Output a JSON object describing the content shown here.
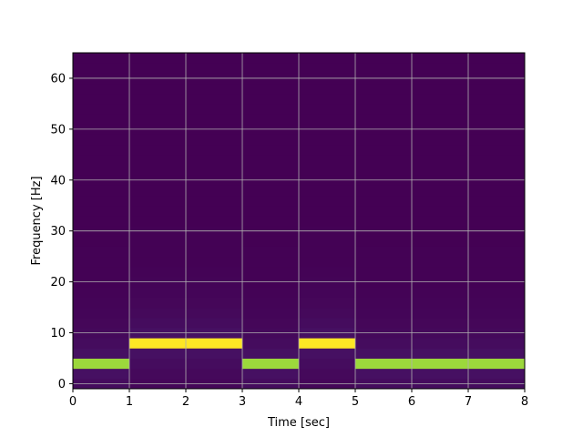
{
  "chart_data": {
    "type": "heatmap",
    "title": "",
    "xlabel": "Time [sec]",
    "ylabel": "Frequency [Hz]",
    "xlim": [
      0,
      8
    ],
    "ylim": [
      -1,
      65
    ],
    "grid": true,
    "xticks": [
      0,
      1,
      2,
      3,
      4,
      5,
      6,
      7,
      8
    ],
    "yticks": [
      0,
      10,
      20,
      30,
      40,
      50,
      60
    ],
    "frequency_bin_width": 2,
    "background_color": "#440154",
    "colormap_stops": [
      "#440154",
      "#482475",
      "#414487",
      "#355f8d",
      "#2a788e",
      "#21918c",
      "#22a884",
      "#44bf70",
      "#7ad151",
      "#bddf26",
      "#fde725"
    ],
    "segments": [
      {
        "t_start": 0,
        "t_end": 1,
        "peak_frequency": 4,
        "intensity": 0.85
      },
      {
        "t_start": 1,
        "t_end": 3,
        "peak_frequency": 8,
        "intensity": 1.0
      },
      {
        "t_start": 3,
        "t_end": 4,
        "peak_frequency": 4,
        "intensity": 0.85
      },
      {
        "t_start": 4,
        "t_end": 5,
        "peak_frequency": 8,
        "intensity": 1.0
      },
      {
        "t_start": 5,
        "t_end": 8,
        "peak_frequency": 4,
        "intensity": 0.85
      }
    ],
    "leakage_intensity": 0.06
  }
}
